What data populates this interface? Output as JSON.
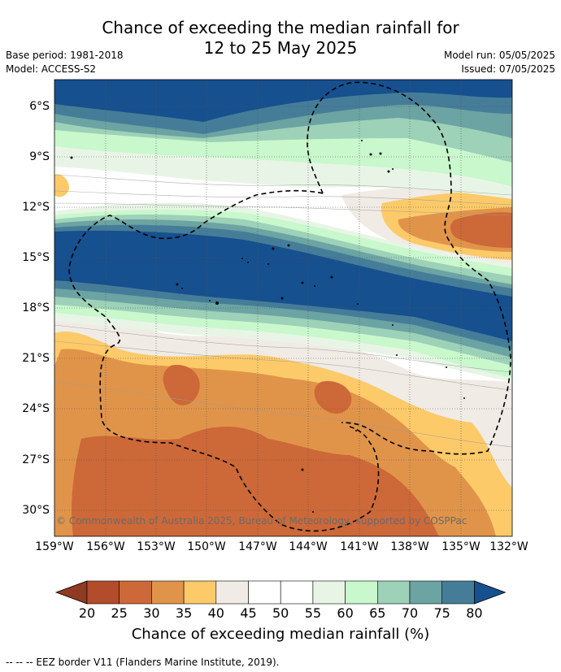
{
  "title_line1": "Chance of exceeding the median rainfall for",
  "title_line2": "12 to 25 May 2025",
  "base_period": "Base period: 1981-2018",
  "model": "Model: ACCESS-S2",
  "model_run": "Model run: 05/05/2025",
  "issued": "Issued: 07/05/2025",
  "copyright": "© Commonwealth of Australia 2025, Bureau of Meteorology, supported by COSPPac",
  "footnote": "--  --  -- EEZ border V11 (Flanders Marine Institute, 2019).",
  "map": {
    "lat_labels": [
      "6°S",
      "9°S",
      "12°S",
      "15°S",
      "18°S",
      "21°S",
      "24°S",
      "27°S",
      "30°S"
    ],
    "lon_labels": [
      "159°W",
      "156°W",
      "153°W",
      "150°W",
      "147°W",
      "144°W",
      "141°W",
      "138°W",
      "135°W",
      "132°W"
    ]
  },
  "colorbar": {
    "label": "Chance of exceeding median rainfall (%)",
    "ticks": [
      "20",
      "25",
      "30",
      "35",
      "40",
      "45",
      "50",
      "55",
      "60",
      "65",
      "70",
      "75",
      "80"
    ],
    "under_color": "#8f3a22",
    "over_color": "#17508e",
    "colors": [
      "#b24c2a",
      "#cd6838",
      "#e0944a",
      "#fdca69",
      "#f0ebe4",
      "#ffffff",
      "#ffffff",
      "#e8f5e6",
      "#c8f8cc",
      "#9dd1b8",
      "#6ca3a3",
      "#457d99"
    ]
  }
}
